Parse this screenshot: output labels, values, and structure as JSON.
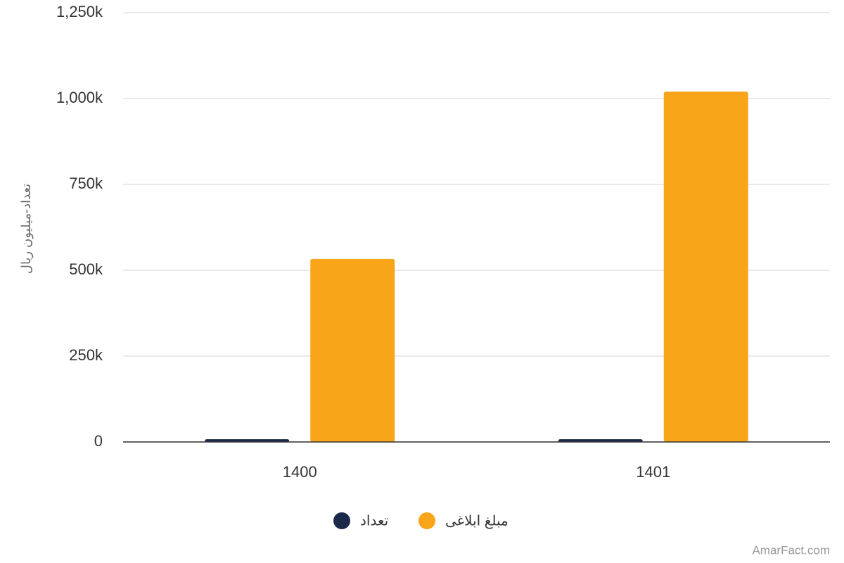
{
  "chart_data": {
    "type": "bar",
    "y_axis_label": "تعداد-میلیون ریال",
    "categories": [
      "1400",
      "1401"
    ],
    "series": [
      {
        "name": "تعداد",
        "color": "#1b2a4a",
        "values": [
          8000,
          8000
        ]
      },
      {
        "name": "مبلغ ابلاغی",
        "color": "#f9a51a",
        "values": [
          533000,
          1020000
        ]
      }
    ],
    "ylim": [
      0,
      1250000
    ],
    "yticks": [
      0,
      {
        "value": 250000,
        "label": "250k"
      },
      {
        "value": 500000,
        "label": "500k"
      },
      {
        "value": 750000,
        "label": "750k"
      },
      {
        "value": 1000000,
        "label": "1,000k"
      },
      {
        "value": 1250000,
        "label": "1,250k"
      }
    ],
    "grid": true,
    "credit": "AmarFact.com"
  }
}
